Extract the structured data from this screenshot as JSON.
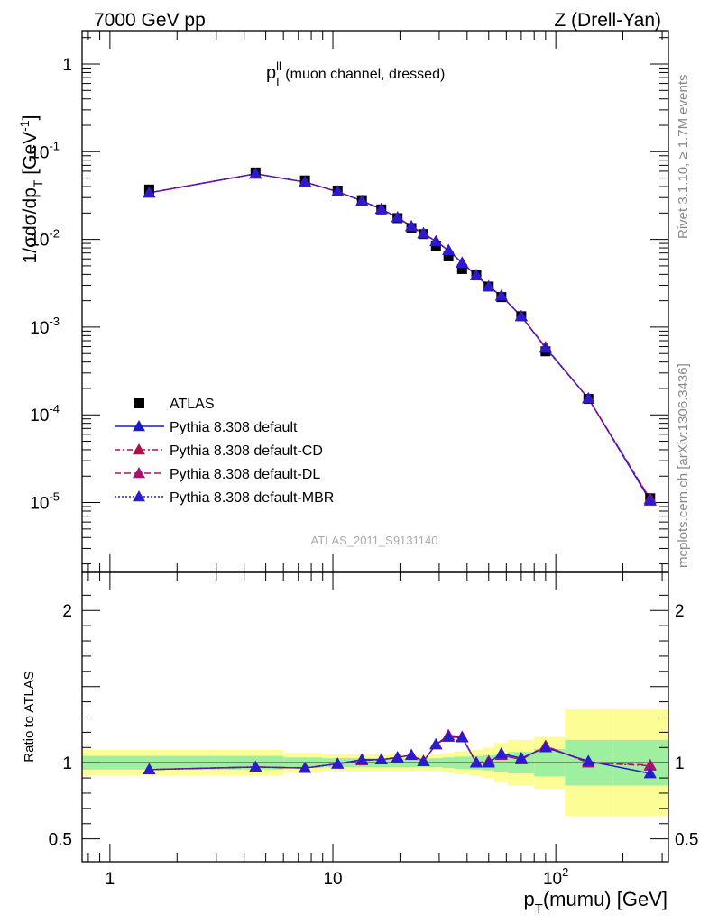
{
  "header": {
    "left": "7000 GeV pp",
    "right": "Z (Drell-Yan)"
  },
  "side_labels": {
    "rivet": "Rivet 3.1.10, ≥ 1.7M events",
    "mcplots": "mcplots.cern.ch [arXiv:1306.3436]"
  },
  "main_title": "p",
  "main_title_sup": "ll",
  "main_title_sub": "T",
  "main_title_rest": " (muon channel, dressed)",
  "analysis_label": "ATLAS_2011_S9131140",
  "axes": {
    "ylabel_main": "1/σdσ/dp",
    "ylabel_main_sub": "T",
    "ylabel_main_unit": " [GeV",
    "ylabel_main_unit_sup": "-1",
    "ylabel_main_close": "]",
    "ylabel_ratio": "Ratio to ATLAS",
    "xlabel": "p",
    "xlabel_sub": "T",
    "xlabel_rest": "(mumu) [GeV]",
    "xlim": [
      0.75,
      320
    ],
    "ylim_main": [
      1.6e-06,
      2.4
    ],
    "ylim_ratio": [
      0.35,
      2.25
    ],
    "xticks": [
      {
        "value": 1,
        "label": "1"
      },
      {
        "value": 10,
        "label": "10"
      },
      {
        "value": 100,
        "label": "10",
        "sup": "2"
      }
    ],
    "yticks_main": [
      {
        "value": 1,
        "label": "1",
        "sup": ""
      },
      {
        "value": 0.1,
        "label": "10",
        "sup": "-1"
      },
      {
        "value": 0.01,
        "label": "10",
        "sup": "-2"
      },
      {
        "value": 0.001,
        "label": "10",
        "sup": "-3"
      },
      {
        "value": 0.0001,
        "label": "10",
        "sup": "-4"
      },
      {
        "value": 1e-05,
        "label": "10",
        "sup": "-5"
      }
    ],
    "yticks_ratio": [
      {
        "value": 0.5,
        "label": "0.5"
      },
      {
        "value": 1,
        "label": "1"
      },
      {
        "value": 2,
        "label": "2"
      }
    ]
  },
  "legend": [
    {
      "label": "ATLAS",
      "key": "data"
    },
    {
      "label": "Pythia 8.308 default",
      "key": "default"
    },
    {
      "label": "Pythia 8.308 default-CD",
      "key": "cd"
    },
    {
      "label": "Pythia 8.308 default-DL",
      "key": "dl"
    },
    {
      "label": "Pythia 8.308 default-MBR",
      "key": "mbr"
    }
  ],
  "colors": {
    "data": "#000000",
    "default": "#1a1acc",
    "cd": "#b0104a",
    "dl": "#a8126e",
    "mbr": "#2a1ad0",
    "band_inner": "#9ef0a0",
    "band_outer": "#fdfd96"
  },
  "chart_data": {
    "type": "scatter",
    "x": [
      1.5,
      4.5,
      7.5,
      10.5,
      13.5,
      16.5,
      19.5,
      22.5,
      25.5,
      29,
      33,
      38,
      44,
      50,
      57,
      70,
      90,
      140,
      265
    ],
    "data_values": [
      0.037,
      0.058,
      0.047,
      0.036,
      0.028,
      0.022,
      0.0175,
      0.0135,
      0.0115,
      0.0085,
      0.0064,
      0.0046,
      0.0039,
      0.0029,
      0.0022,
      0.00133,
      0.00053,
      0.000152,
      1.12e-05
    ],
    "series": [
      {
        "name": "Pythia 8.308 default",
        "key": "default",
        "main": [
          0.034,
          0.056,
          0.045,
          0.035,
          0.0275,
          0.0222,
          0.0178,
          0.0141,
          0.0117,
          0.0095,
          0.0075,
          0.0054,
          0.0039,
          0.0029,
          0.00227,
          0.00133,
          0.00058,
          0.000154,
          1.05e-05
        ],
        "ratio": [
          0.955,
          0.972,
          0.965,
          0.993,
          1.02,
          1.02,
          1.035,
          1.05,
          1.01,
          1.12,
          1.17,
          1.165,
          1.0,
          1.0,
          1.06,
          1.03,
          1.1,
          1.01,
          0.93
        ]
      },
      {
        "name": "Pythia 8.308 default-CD",
        "key": "cd",
        "main": [
          0.034,
          0.056,
          0.045,
          0.035,
          0.0275,
          0.0222,
          0.0178,
          0.0141,
          0.0117,
          0.0095,
          0.0075,
          0.0054,
          0.0039,
          0.0029,
          0.00227,
          0.00133,
          0.00059,
          0.000154,
          1.1e-05
        ],
        "ratio": [
          0.955,
          0.972,
          0.965,
          0.993,
          1.015,
          1.02,
          1.035,
          1.05,
          1.01,
          1.12,
          1.18,
          1.17,
          1.0,
          1.01,
          1.05,
          1.02,
          1.11,
          1.0,
          0.98
        ]
      },
      {
        "name": "Pythia 8.308 default-DL",
        "key": "dl",
        "main": [
          0.034,
          0.056,
          0.045,
          0.035,
          0.0275,
          0.0222,
          0.0178,
          0.0141,
          0.0117,
          0.0095,
          0.0075,
          0.0054,
          0.0039,
          0.0029,
          0.00227,
          0.00133,
          0.00059,
          0.000154,
          1.1e-05
        ],
        "ratio": [
          0.955,
          0.972,
          0.965,
          0.993,
          1.015,
          1.02,
          1.035,
          1.05,
          1.01,
          1.12,
          1.18,
          1.17,
          1.0,
          1.01,
          1.05,
          1.02,
          1.11,
          1.0,
          0.985
        ]
      },
      {
        "name": "Pythia 8.308 default-MBR",
        "key": "mbr",
        "main": [
          0.034,
          0.056,
          0.045,
          0.035,
          0.0275,
          0.0222,
          0.0178,
          0.0141,
          0.0117,
          0.0095,
          0.0075,
          0.0054,
          0.0039,
          0.0029,
          0.00227,
          0.00133,
          0.00058,
          0.000154,
          1.05e-05
        ],
        "ratio": [
          0.955,
          0.972,
          0.965,
          0.993,
          1.02,
          1.02,
          1.035,
          1.05,
          1.01,
          1.12,
          1.17,
          1.165,
          1.0,
          1.0,
          1.06,
          1.03,
          1.1,
          1.01,
          0.93
        ]
      }
    ],
    "bands": {
      "x_edges": [
        0.75,
        3,
        6,
        9,
        12,
        15,
        18,
        21,
        24,
        27,
        31,
        35,
        41,
        47,
        53,
        61,
        80,
        110,
        180,
        320
      ],
      "inner": [
        0.045,
        0.045,
        0.035,
        0.03,
        0.03,
        0.03,
        0.03,
        0.03,
        0.03,
        0.03,
        0.035,
        0.04,
        0.045,
        0.05,
        0.06,
        0.07,
        0.09,
        0.15,
        0.15
      ],
      "outer": [
        0.085,
        0.085,
        0.065,
        0.055,
        0.055,
        0.055,
        0.055,
        0.055,
        0.055,
        0.055,
        0.065,
        0.075,
        0.085,
        0.1,
        0.13,
        0.15,
        0.17,
        0.35,
        0.35
      ]
    }
  }
}
